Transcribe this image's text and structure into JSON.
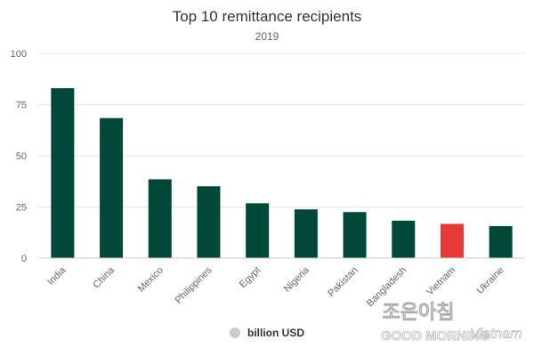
{
  "chart_data": {
    "type": "bar",
    "title": "Top 10 remittance recipients",
    "subtitle": "2019",
    "categories": [
      "India",
      "China",
      "Mexico",
      "Philippines",
      "Egypt",
      "Nigeria",
      "Pakistan",
      "Bangladesh",
      "Vietnam",
      "Ukraine"
    ],
    "series": [
      {
        "name": "billion USD",
        "values": [
          83,
          68.4,
          38.5,
          35.1,
          26.8,
          23.8,
          22.5,
          18.3,
          16.7,
          15.6
        ]
      }
    ],
    "ylim": [
      0,
      100
    ],
    "yticks": [
      0,
      25,
      50,
      75,
      100
    ],
    "grid": true,
    "legend_position": "bottom",
    "colors": {
      "bar": "#00483a",
      "highlight": "#e63b35",
      "highlight_category": "Vietnam",
      "grid": "#e6e6e6",
      "axis": "#cccccc",
      "legend_marker": "#cccccc"
    }
  },
  "watermark": {
    "line1": "조은아침",
    "line2": "GOOD MORNING",
    "line3": "Vietnam"
  }
}
